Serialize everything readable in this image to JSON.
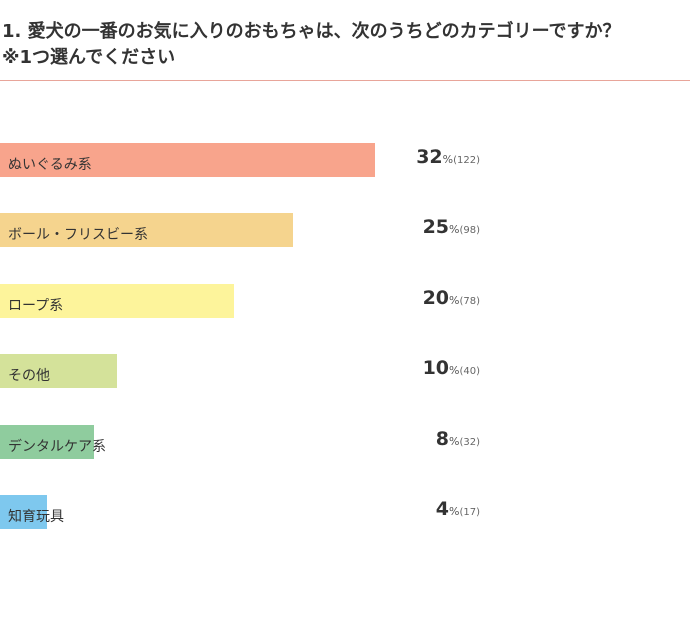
{
  "question": {
    "line1": "1. 愛犬の一番のお気に入りのおもちゃは、次のうちどのカテゴリーですか？",
    "line2": "※1つ選んでください"
  },
  "percent_sign": "%",
  "chart_data": {
    "type": "bar",
    "orientation": "horizontal",
    "xlim": [
      0,
      100
    ],
    "categories": [
      "ぬいぐるみ系",
      "ボール・フリスビー系",
      "ロープ系",
      "その他",
      "デンタルケア系",
      "知育玩具"
    ],
    "values": [
      32,
      25,
      20,
      10,
      8,
      4
    ],
    "counts": [
      "(122)",
      "(98)",
      "(78)",
      "(40)",
      "(32)",
      "(17)"
    ],
    "colors": [
      "#f8a48c",
      "#f5d48e",
      "#fdf49b",
      "#d4e29a",
      "#8fcc9e",
      "#7ec8ee"
    ]
  }
}
